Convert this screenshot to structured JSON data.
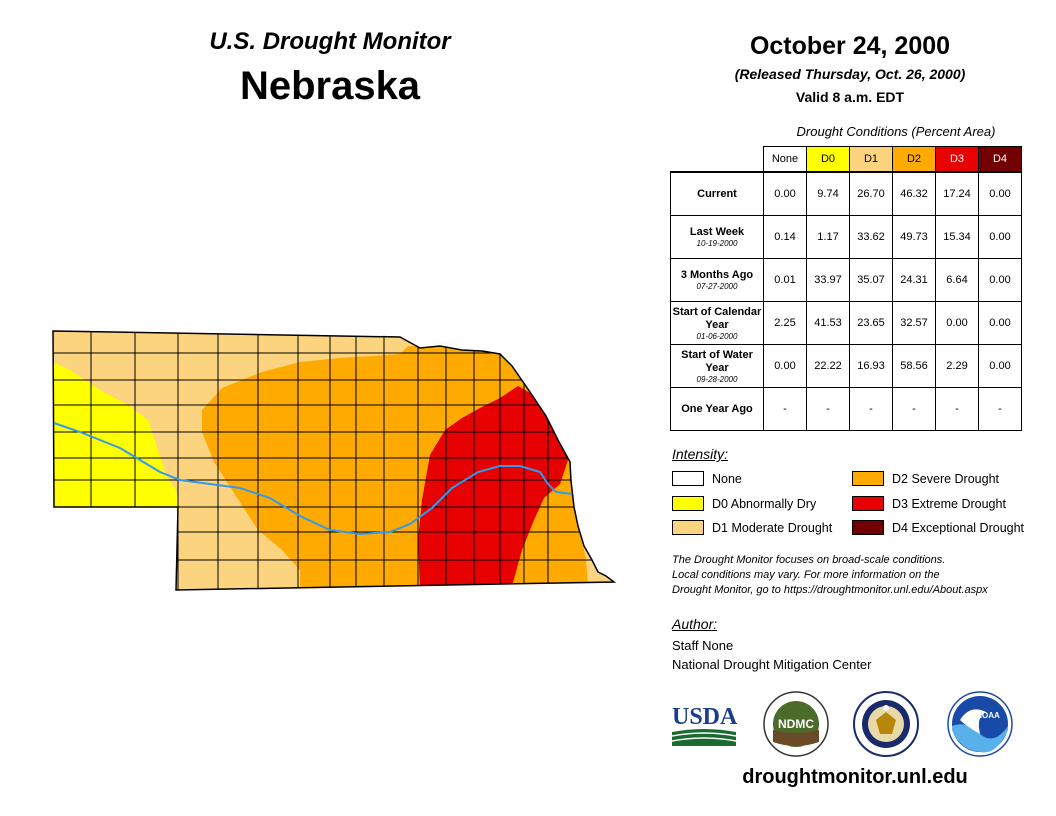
{
  "header": {
    "subtitle": "U.S. Drought Monitor",
    "state": "Nebraska",
    "date": "October 24, 2000",
    "released": "(Released Thursday, Oct. 26, 2000)",
    "valid": "Valid 8 a.m. EDT"
  },
  "table": {
    "caption": "Drought Conditions (Percent Area)",
    "columns": [
      "None",
      "D0",
      "D1",
      "D2",
      "D3",
      "D4"
    ],
    "column_colors": [
      "#ffffff",
      "#ffff00",
      "#fcd37f",
      "#ffaa00",
      "#e60000",
      "#730000"
    ],
    "rows": [
      {
        "label": "Current",
        "date": "",
        "values": [
          "0.00",
          "9.74",
          "26.70",
          "46.32",
          "17.24",
          "0.00"
        ]
      },
      {
        "label": "Last Week",
        "date": "10-19-2000",
        "values": [
          "0.14",
          "1.17",
          "33.62",
          "49.73",
          "15.34",
          "0.00"
        ]
      },
      {
        "label": "3 Months Ago",
        "date": "07-27-2000",
        "values": [
          "0.01",
          "33.97",
          "35.07",
          "24.31",
          "6.64",
          "0.00"
        ]
      },
      {
        "label": "Start of Calendar Year",
        "date": "01-06-2000",
        "values": [
          "2.25",
          "41.53",
          "23.65",
          "32.57",
          "0.00",
          "0.00"
        ]
      },
      {
        "label": "Start of Water Year",
        "date": "09-28-2000",
        "values": [
          "0.00",
          "22.22",
          "16.93",
          "58.56",
          "2.29",
          "0.00"
        ]
      },
      {
        "label": "One Year Ago",
        "date": "",
        "values": [
          "-",
          "-",
          "-",
          "-",
          "-",
          "-"
        ]
      }
    ]
  },
  "legend": {
    "title": "Intensity:",
    "items": [
      {
        "label": "None",
        "color": "#ffffff"
      },
      {
        "label": "D0 Abnormally Dry",
        "color": "#ffff00"
      },
      {
        "label": "D1 Moderate Drought",
        "color": "#fcd37f"
      },
      {
        "label": "D2 Severe Drought",
        "color": "#ffaa00"
      },
      {
        "label": "D3 Extreme Drought",
        "color": "#e60000"
      },
      {
        "label": "D4 Exceptional Drought",
        "color": "#730000"
      }
    ]
  },
  "note": {
    "line1": "The Drought Monitor focuses on broad-scale conditions.",
    "line2": "Local conditions may vary. For more information on the",
    "line3": "Drought Monitor, go to https://droughtmonitor.unl.edu/About.aspx"
  },
  "author": {
    "title": "Author:",
    "name": "Staff None",
    "org": "National Drought Mitigation Center"
  },
  "logos": {
    "usda": "USDA",
    "ndmc": "NDMC",
    "noaa": "NOAA"
  },
  "footer": {
    "url": "droughtmonitor.unl.edu"
  },
  "map": {
    "river_color": "#3399ee",
    "county_line_color": "#000000"
  }
}
